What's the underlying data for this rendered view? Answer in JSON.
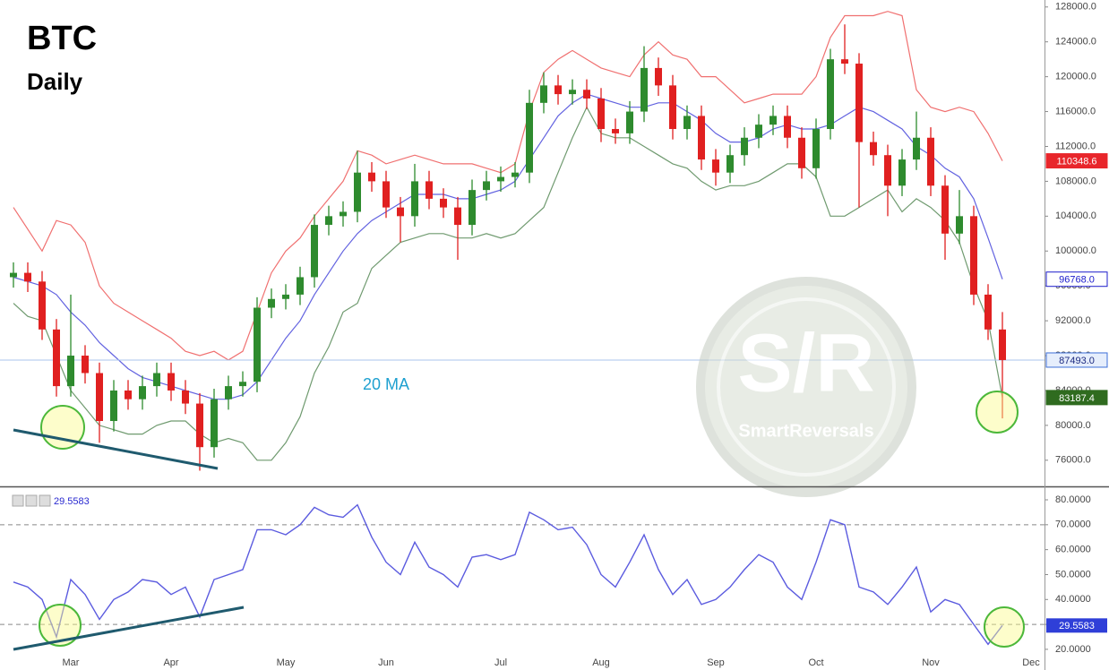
{
  "chart_data": [
    {
      "type": "candlestick",
      "title": "BTC",
      "subtitle": "Daily",
      "annotation": "20 MA",
      "up_color": "#2e8b2e",
      "down_color": "#e02020",
      "open": [
        97000,
        97500,
        96500,
        91000,
        84500,
        88000,
        86000,
        80500,
        84000,
        83000,
        84500,
        86000,
        84000,
        82500,
        77500,
        83000,
        84500,
        85000,
        93500,
        94500,
        95000,
        97000,
        103000,
        104000,
        104500,
        109000,
        108000,
        105000,
        104000,
        108000,
        106000,
        105000,
        103000,
        107000,
        108000,
        108500,
        109000,
        117000,
        119000,
        118000,
        118500,
        117500,
        114000,
        113500,
        116000,
        121000,
        119000,
        114000,
        115500,
        110500,
        109000,
        111000,
        113000,
        114500,
        115500,
        113000,
        109500,
        114000,
        122000,
        121500,
        112500,
        111000,
        107500,
        110500,
        113000,
        107500,
        102000,
        104000,
        95000,
        91000,
        null,
        null
      ],
      "high": [
        98700,
        98700,
        97700,
        92200,
        95000,
        89200,
        87200,
        85200,
        85200,
        85700,
        87200,
        87200,
        85200,
        83700,
        84200,
        85700,
        86200,
        94700,
        95700,
        96200,
        98200,
        104200,
        105200,
        105700,
        111500,
        110200,
        109200,
        106200,
        110000,
        109200,
        107200,
        106200,
        108200,
        109200,
        109700,
        110200,
        118500,
        120500,
        120200,
        119700,
        119700,
        118700,
        115200,
        117200,
        123500,
        122200,
        120200,
        116700,
        116700,
        111700,
        112200,
        114200,
        115700,
        116700,
        116700,
        114200,
        115200,
        123200,
        126000,
        122700,
        113700,
        112200,
        111700,
        116000,
        114200,
        108700,
        107000,
        105200,
        96200,
        93000,
        null,
        null
      ],
      "low": [
        95800,
        95300,
        89800,
        83300,
        83300,
        84800,
        78000,
        79300,
        81800,
        81800,
        83300,
        82800,
        81300,
        74800,
        76300,
        81800,
        83300,
        83800,
        92300,
        93300,
        93800,
        95800,
        101800,
        102800,
        103300,
        106800,
        103800,
        101000,
        102800,
        104800,
        103800,
        99000,
        101800,
        105800,
        106800,
        107300,
        107800,
        115800,
        116800,
        116800,
        116300,
        112500,
        112300,
        112300,
        114800,
        117800,
        112800,
        112800,
        109300,
        107500,
        107800,
        109800,
        111800,
        113300,
        111800,
        108300,
        108300,
        112800,
        120300,
        105000,
        109800,
        104000,
        106300,
        109300,
        106300,
        99000,
        100800,
        93800,
        89800,
        80800,
        null,
        null
      ],
      "close": [
        97500,
        96500,
        91000,
        84500,
        88000,
        86000,
        80500,
        84000,
        83000,
        84500,
        86000,
        84000,
        82500,
        77500,
        83000,
        84500,
        85000,
        93500,
        94500,
        95000,
        97000,
        103000,
        104000,
        104500,
        109000,
        108000,
        105000,
        104000,
        108000,
        106000,
        105000,
        103000,
        107000,
        108000,
        108500,
        109000,
        117000,
        119000,
        118000,
        118500,
        117500,
        114000,
        113500,
        116000,
        121000,
        119000,
        114000,
        115500,
        110500,
        109000,
        111000,
        113000,
        114500,
        115500,
        113000,
        109500,
        114000,
        122000,
        121500,
        112500,
        111000,
        107500,
        110500,
        113000,
        107500,
        102000,
        104000,
        95000,
        91000,
        87493,
        null,
        null
      ],
      "close_label": "87493.0",
      "bands": {
        "upper": {
          "color": "#f07070",
          "values": [
            105000,
            102500,
            100000,
            103500,
            103000,
            101000,
            96000,
            94000,
            93000,
            92000,
            91000,
            90000,
            88500,
            88000,
            88500,
            87500,
            88500,
            93000,
            97500,
            100000,
            101500,
            104000,
            106000,
            108000,
            111500,
            111000,
            110000,
            110500,
            111000,
            110500,
            110000,
            110000,
            110000,
            109500,
            109000,
            110000,
            116000,
            120500,
            122000,
            123000,
            122000,
            121000,
            120500,
            120000,
            122500,
            124000,
            122500,
            122000,
            120000,
            120000,
            118500,
            117000,
            117500,
            118000,
            118000,
            118000,
            120000,
            124500,
            127000,
            127000,
            127000,
            127500,
            127000,
            118500,
            116500,
            116000,
            116500,
            116000,
            113500,
            110348.6,
            null,
            null
          ]
        },
        "middle": {
          "color": "#6262e0",
          "last_label": "96768.0",
          "values": [
            97000,
            96500,
            96000,
            95000,
            93000,
            91500,
            89500,
            88000,
            86500,
            85500,
            85000,
            84500,
            84000,
            83500,
            83000,
            83000,
            83500,
            85000,
            87500,
            90000,
            92000,
            95000,
            97500,
            100000,
            102000,
            103500,
            104500,
            105500,
            106500,
            106500,
            106500,
            106000,
            106000,
            106500,
            107000,
            108000,
            110500,
            113000,
            115500,
            117000,
            118000,
            117500,
            117000,
            116500,
            116500,
            117000,
            117000,
            116000,
            115000,
            113500,
            112500,
            112500,
            113000,
            114000,
            114500,
            114000,
            114000,
            114500,
            115500,
            116500,
            116000,
            115000,
            114000,
            112000,
            111000,
            109500,
            108500,
            106000,
            101500,
            96768,
            null,
            null
          ]
        },
        "lower": {
          "color": "#6f9a6f",
          "values": [
            94000,
            92500,
            92000,
            88000,
            84000,
            82000,
            80000,
            79500,
            79000,
            79000,
            80000,
            80500,
            80500,
            79000,
            78000,
            78500,
            78000,
            76000,
            76000,
            78000,
            81000,
            86000,
            89000,
            93000,
            94000,
            98000,
            99500,
            101000,
            101500,
            102000,
            102000,
            101500,
            101500,
            102000,
            101500,
            102000,
            103500,
            105000,
            109000,
            113000,
            116500,
            113500,
            113000,
            113000,
            112000,
            111000,
            110000,
            109500,
            108000,
            107000,
            107500,
            107500,
            108000,
            109000,
            110000,
            110000,
            108500,
            104000,
            104000,
            105000,
            106000,
            107000,
            104500,
            106000,
            105000,
            103500,
            101000,
            96000,
            92000,
            83187.4,
            null,
            null
          ]
        }
      },
      "ylim": [
        73000,
        128800
      ],
      "yticks": [
        {
          "value": 76000,
          "label": "76000.0"
        },
        {
          "value": 80000,
          "label": "80000.0"
        },
        {
          "value": 84000,
          "label": "84000.0"
        },
        {
          "value": 88000,
          "label": "88000.0"
        },
        {
          "value": 92000,
          "label": "92000.0"
        },
        {
          "value": 96000,
          "label": "96000.0"
        },
        {
          "value": 100000,
          "label": "100000.0"
        },
        {
          "value": 104000,
          "label": "104000.0"
        },
        {
          "value": 108000,
          "label": "108000.0"
        },
        {
          "value": 112000,
          "label": "112000.0"
        },
        {
          "value": 116000,
          "label": "116000.0"
        },
        {
          "value": 120000,
          "label": "120000.0"
        },
        {
          "value": 124000,
          "label": "124000.0"
        },
        {
          "value": 128000,
          "label": "128000.0"
        }
      ],
      "watermark": {
        "logo": "S/R",
        "brand": "SmartReversals"
      }
    },
    {
      "type": "line",
      "color": "#5b5bdf",
      "categories": [
        null,
        null,
        null,
        null,
        "Mar",
        null,
        null,
        null,
        null,
        null,
        null,
        "Apr",
        null,
        null,
        null,
        null,
        null,
        null,
        null,
        "May",
        null,
        null,
        null,
        null,
        null,
        null,
        "Jun",
        null,
        null,
        null,
        null,
        null,
        null,
        null,
        "Jul",
        null,
        null,
        null,
        null,
        null,
        null,
        "Aug",
        null,
        null,
        null,
        null,
        null,
        null,
        null,
        "Sep",
        null,
        null,
        null,
        null,
        null,
        null,
        "Oct",
        null,
        null,
        null,
        null,
        null,
        null,
        null,
        "Nov",
        null,
        null,
        null,
        null,
        null,
        null,
        "Dec"
      ],
      "values": [
        47,
        45,
        40,
        25,
        48,
        42,
        32,
        40,
        43,
        48,
        47,
        42,
        45,
        33,
        48,
        50,
        52,
        68,
        68,
        66,
        70,
        77,
        74,
        73,
        78,
        65,
        55,
        50,
        63,
        53,
        50,
        45,
        57,
        58,
        56,
        58,
        75,
        72,
        68,
        69,
        62,
        50,
        45,
        55,
        66,
        52,
        42,
        48,
        38,
        40,
        45,
        52,
        58,
        55,
        45,
        40,
        55,
        72,
        70,
        45,
        43,
        38,
        45,
        53,
        35,
        40,
        38,
        30,
        22,
        29.5583,
        null,
        null
      ],
      "levels": [
        70,
        30
      ],
      "ylim": [
        11.7,
        83.6
      ],
      "yticks": [
        {
          "value": 20,
          "label": "20.0000"
        },
        {
          "value": 30,
          "label": "30.0000"
        },
        {
          "value": 40,
          "label": "40.0000"
        },
        {
          "value": 50,
          "label": "50.0000"
        },
        {
          "value": 60,
          "label": "60.0000"
        },
        {
          "value": 70,
          "label": "70.0000"
        },
        {
          "value": 80,
          "label": "80.0000"
        }
      ]
    }
  ]
}
